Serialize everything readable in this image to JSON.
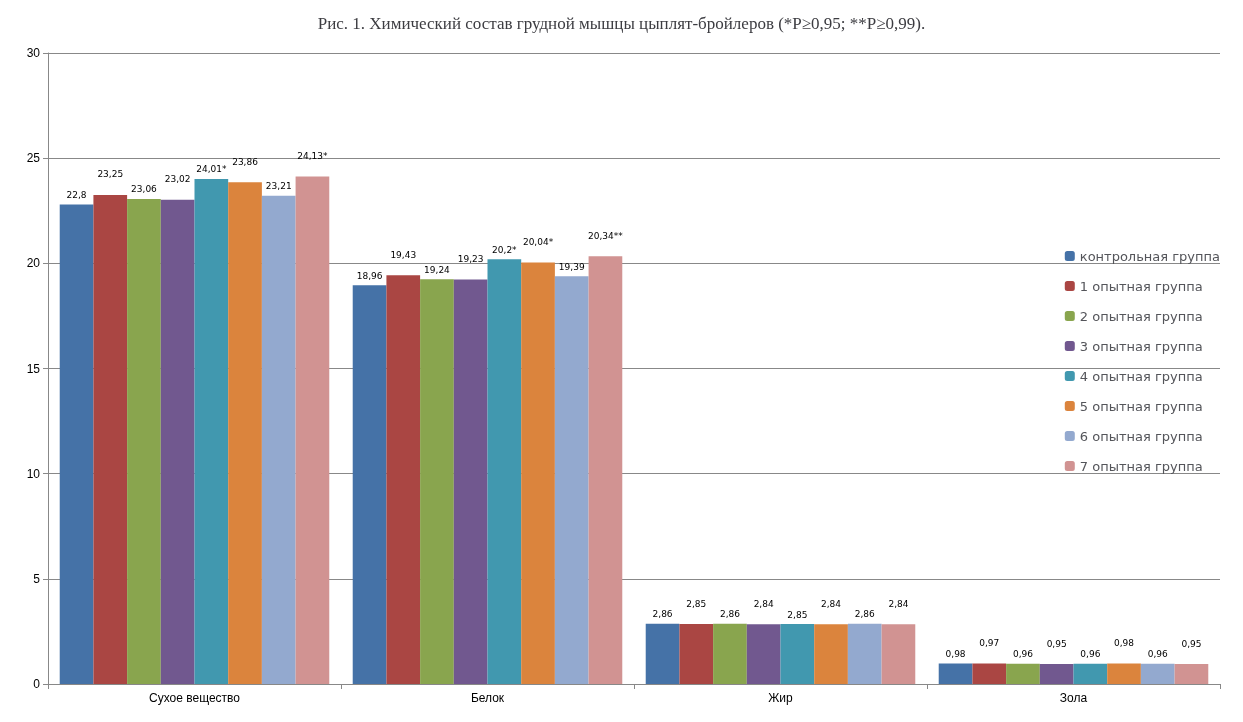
{
  "chart_data": {
    "type": "bar",
    "title": "Рис. 1. Химический состав грудной мышцы цыплят-бройлеров (*Р≥0,95; **Р≥0,99).",
    "categories": [
      "Сухое вещество",
      "Белок",
      "Жир",
      "Зола"
    ],
    "series": [
      {
        "name": "контрольная группа",
        "color": "#4572a7",
        "values": [
          22.8,
          18.96,
          2.86,
          0.98
        ],
        "value_labels": [
          "22,8",
          "18,96",
          "2,86",
          "0,98"
        ]
      },
      {
        "name": "1 опытная группа",
        "color": "#aa4643",
        "values": [
          23.25,
          19.43,
          2.85,
          0.97
        ],
        "value_labels": [
          "23,25",
          "19,43",
          "2,85",
          "0,97"
        ]
      },
      {
        "name": "2 опытная группа",
        "color": "#89a54e",
        "values": [
          23.06,
          19.24,
          2.86,
          0.96
        ],
        "value_labels": [
          "23,06",
          "19,24",
          "2,86",
          "0,96"
        ]
      },
      {
        "name": "3 опытная группа",
        "color": "#71588f",
        "values": [
          23.02,
          19.23,
          2.84,
          0.95
        ],
        "value_labels": [
          "23,02",
          "19,23",
          "2,84",
          "0,95"
        ]
      },
      {
        "name": "4 опытная группа",
        "color": "#4198af",
        "values": [
          24.01,
          20.2,
          2.85,
          0.96
        ],
        "value_labels": [
          "24,01*",
          "20,2*",
          "2,85",
          "0,96"
        ]
      },
      {
        "name": "5 опытная группа",
        "color": "#db843d",
        "values": [
          23.86,
          20.04,
          2.84,
          0.98
        ],
        "value_labels": [
          "23,86",
          "20,04*",
          "2,84",
          "0,98"
        ]
      },
      {
        "name": "6 опытная группа",
        "color": "#93a9cf",
        "values": [
          23.21,
          19.39,
          2.86,
          0.96
        ],
        "value_labels": [
          "23,21",
          "19,39",
          "2,86",
          "0,96"
        ]
      },
      {
        "name": "7 опытная группа",
        "color": "#d19392",
        "values": [
          24.13,
          20.34,
          2.84,
          0.95
        ],
        "value_labels": [
          "24,13*",
          "20,34**",
          "2,84",
          "0,95"
        ]
      }
    ],
    "ylim": [
      0,
      30
    ],
    "yticks": [
      0,
      5,
      10,
      15,
      20,
      25,
      30
    ],
    "grid": "y",
    "legend": "right"
  }
}
